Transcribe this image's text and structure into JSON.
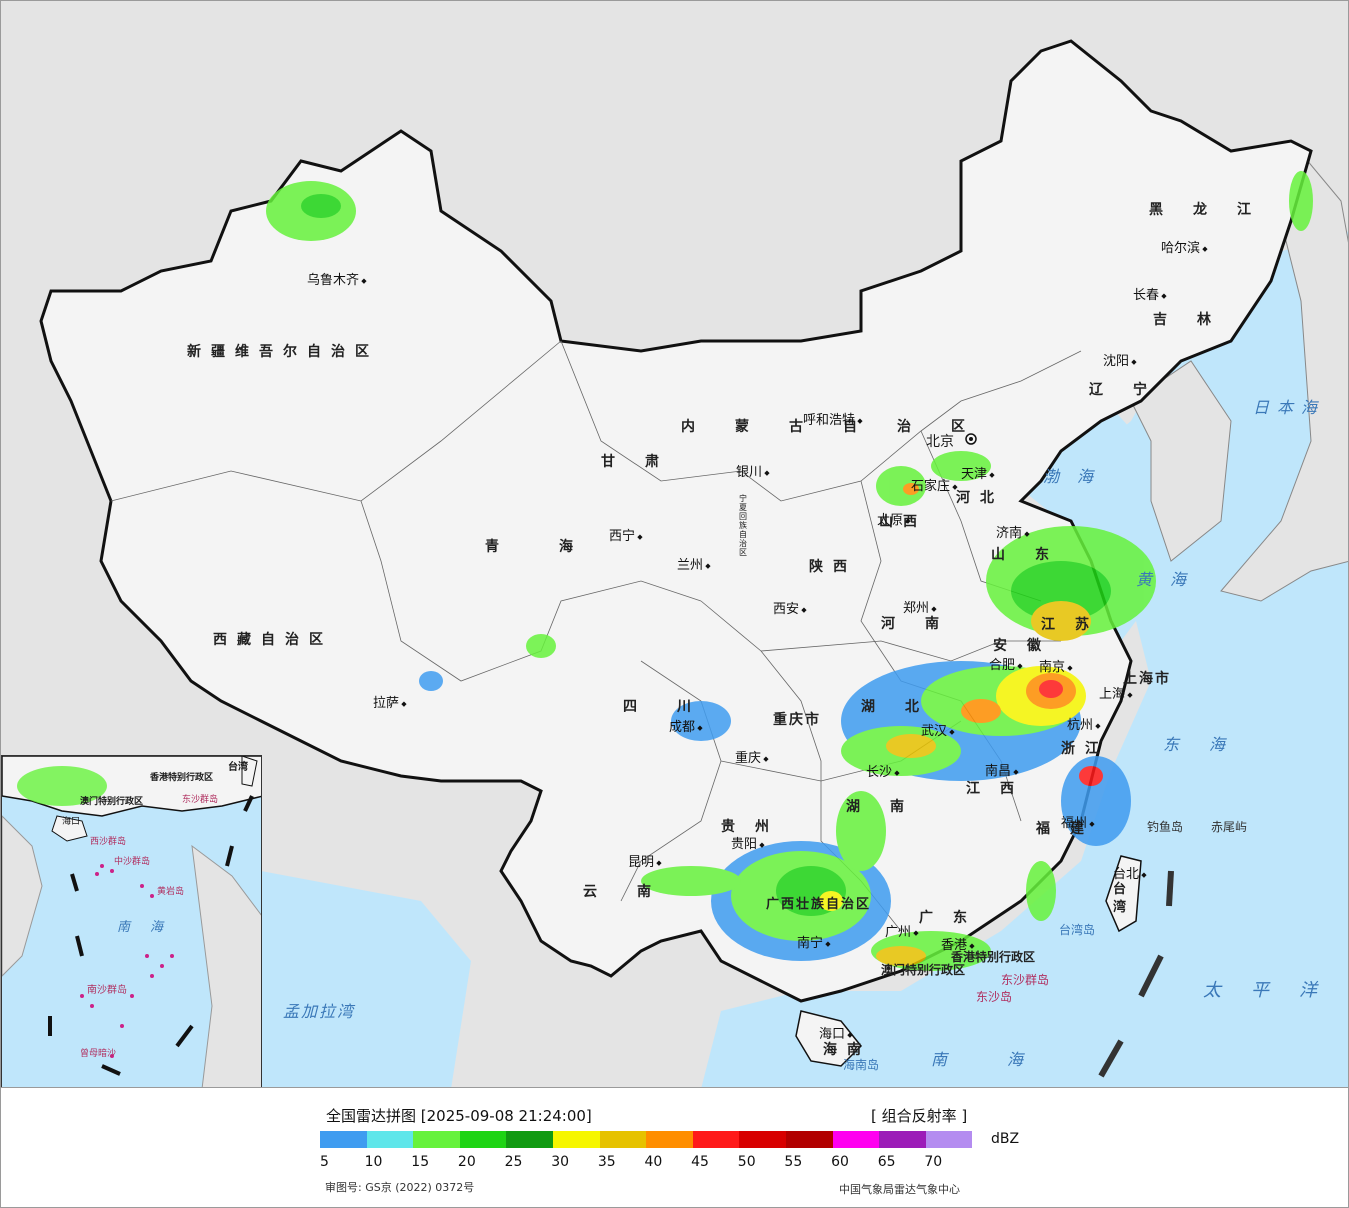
{
  "colors": {
    "ocean": "#bfe6fb",
    "land_outside": "#e4e4e4",
    "china_land": "#f4f4f4",
    "border": "#111111"
  },
  "map_labels": {
    "provinces": [
      {
        "text": "新疆维吾尔自治区"
      },
      {
        "text": "西藏自治区"
      },
      {
        "text": "青海"
      },
      {
        "text": "甘肃"
      },
      {
        "text": "内蒙古自治区"
      },
      {
        "text": "黑龙江"
      },
      {
        "text": "吉林"
      },
      {
        "text": "辽宁"
      },
      {
        "text": "河北"
      },
      {
        "text": "山西"
      },
      {
        "text": "陕西"
      },
      {
        "text": "四川"
      },
      {
        "text": "云南"
      },
      {
        "text": "贵州"
      },
      {
        "text": "湖南"
      },
      {
        "text": "湖北"
      },
      {
        "text": "河南"
      },
      {
        "text": "山东"
      },
      {
        "text": "江苏"
      },
      {
        "text": "安徽"
      },
      {
        "text": "浙江"
      },
      {
        "text": "江西"
      },
      {
        "text": "福建"
      },
      {
        "text": "广东"
      },
      {
        "text": "广西壮族自治区"
      },
      {
        "text": "海南"
      },
      {
        "text": "重庆市"
      },
      {
        "text": "上海市"
      },
      {
        "text": "宁夏回族自治区"
      }
    ],
    "cities": [
      {
        "text": "乌鲁木齐"
      },
      {
        "text": "拉萨"
      },
      {
        "text": "西宁"
      },
      {
        "text": "兰州"
      },
      {
        "text": "银川"
      },
      {
        "text": "呼和浩特"
      },
      {
        "text": "哈尔滨"
      },
      {
        "text": "长春"
      },
      {
        "text": "沈阳"
      },
      {
        "text": "北京"
      },
      {
        "text": "天津"
      },
      {
        "text": "石家庄"
      },
      {
        "text": "太原"
      },
      {
        "text": "济南"
      },
      {
        "text": "郑州"
      },
      {
        "text": "西安"
      },
      {
        "text": "成都"
      },
      {
        "text": "重庆"
      },
      {
        "text": "贵阳"
      },
      {
        "text": "昆明"
      },
      {
        "text": "南宁"
      },
      {
        "text": "广州"
      },
      {
        "text": "长沙"
      },
      {
        "text": "武汉"
      },
      {
        "text": "合肥"
      },
      {
        "text": "南京"
      },
      {
        "text": "上海"
      },
      {
        "text": "杭州"
      },
      {
        "text": "南昌"
      },
      {
        "text": "福州"
      },
      {
        "text": "台北"
      },
      {
        "text": "海口"
      },
      {
        "text": "香港"
      }
    ],
    "seas": [
      {
        "text": "日本海"
      },
      {
        "text": "渤海"
      },
      {
        "text": "黄海"
      },
      {
        "text": "东海"
      },
      {
        "text": "太平洋"
      },
      {
        "text": "南海"
      },
      {
        "text": "孟加拉湾"
      }
    ],
    "islands": [
      {
        "text": "钓鱼岛"
      },
      {
        "text": "赤尾屿"
      },
      {
        "text": "台湾岛"
      },
      {
        "text": "海南岛"
      },
      {
        "text": "东沙群岛"
      },
      {
        "text": "东沙岛"
      }
    ],
    "sars": [
      {
        "text": "香港特别行政区"
      },
      {
        "text": "澳门特别行政区"
      }
    ],
    "taiwan": "台湾"
  },
  "inset": {
    "labels": [
      {
        "text": "台湾"
      },
      {
        "text": "香港特别行政区"
      },
      {
        "text": "澳门特别行政区"
      },
      {
        "text": "东沙群岛"
      },
      {
        "text": "海口"
      },
      {
        "text": "西沙群岛"
      },
      {
        "text": "中沙群岛"
      },
      {
        "text": "黄岩岛"
      },
      {
        "text": "南海"
      },
      {
        "text": "南沙群岛"
      },
      {
        "text": "曾母暗沙"
      }
    ]
  },
  "legend": {
    "title": "全国雷达拼图 [2025-09-08 21:24:00]",
    "product": "[ 组合反射率 ]",
    "unit": "dBZ",
    "colors": [
      "#3f9cf0",
      "#5fe6ea",
      "#66f23c",
      "#1ed414",
      "#119a12",
      "#f6f600",
      "#e6c200",
      "#ff8e00",
      "#ff1a1a",
      "#d80000",
      "#b20000",
      "#ff00f0",
      "#9c1cb8",
      "#b48cf0"
    ],
    "ticks": [
      "5",
      "10",
      "15",
      "20",
      "25",
      "30",
      "35",
      "40",
      "45",
      "50",
      "55",
      "60",
      "65",
      "70"
    ],
    "approval": "审图号: GS京 (2022) 0372号",
    "credit": "中国气象局雷达气象中心"
  }
}
